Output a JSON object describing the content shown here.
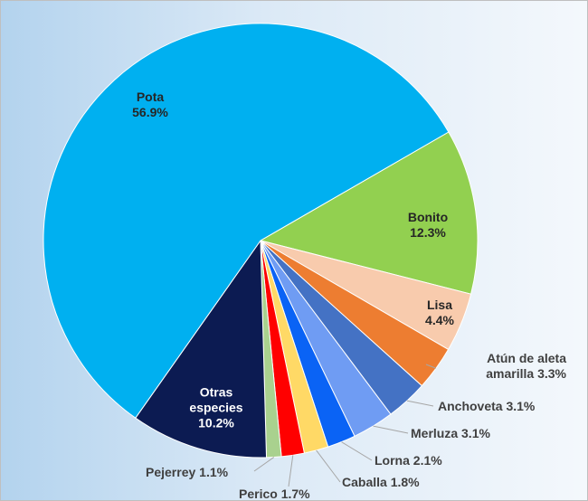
{
  "chart_data": {
    "type": "pie",
    "categories": [
      "Bonito",
      "Lisa",
      "Atún de aleta amarilla",
      "Anchoveta",
      "Merluza",
      "Lorna",
      "Caballa",
      "Perico",
      "Pejerrey",
      "Otras especies",
      "Pota"
    ],
    "values": [
      12.3,
      4.4,
      3.3,
      3.1,
      3.1,
      2.1,
      1.8,
      1.7,
      1.1,
      10.2,
      56.9
    ],
    "value_labels": [
      "12.3%",
      "4.4%",
      "3.3%",
      "3.1%",
      "3.1%",
      "2.1%",
      "1.8%",
      "1.7%",
      "1.1%",
      "10.2%",
      "56.9%"
    ],
    "colors": [
      "#92d050",
      "#f8cbad",
      "#ed7d31",
      "#4472c4",
      "#6f9cf3",
      "#0a63f5",
      "#ffd966",
      "#ff0000",
      "#a9d18e",
      "#0c1b52",
      "#00b0f0"
    ]
  }
}
